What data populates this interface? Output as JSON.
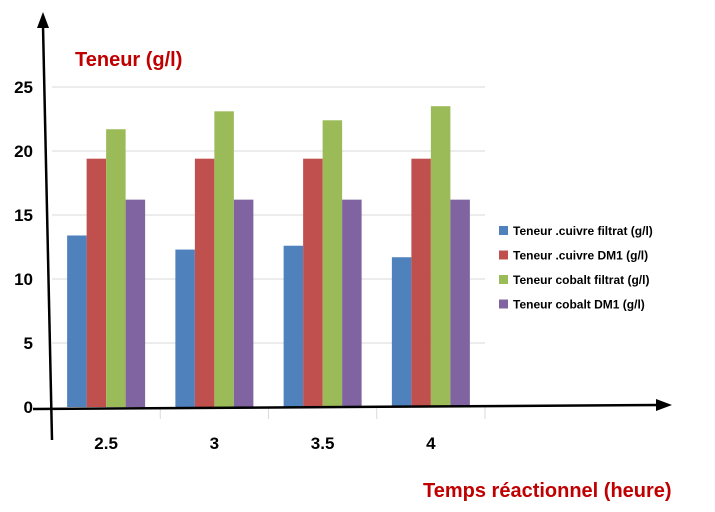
{
  "chart_data": {
    "type": "bar",
    "title": "",
    "ylabel": "Teneur (g/l)",
    "xlabel": "Temps réactionnel  (heure)",
    "categories": [
      "2.5",
      "3",
      "3.5",
      "4"
    ],
    "ylim": [
      0,
      25
    ],
    "yticks": [
      "0",
      "5",
      "10",
      "15",
      "20",
      "25"
    ],
    "grid": true,
    "legend_position": "right",
    "series": [
      {
        "name": "Teneur  .cuivre filtrat (g/l)",
        "color": "#4F81BD",
        "values": [
          13.4,
          12.3,
          12.6,
          11.7
        ]
      },
      {
        "name": "Teneur  .cuivre DM1 (g/l)",
        "color": "#C0504D",
        "values": [
          19.4,
          19.4,
          19.4,
          19.4
        ]
      },
      {
        "name": "Teneur cobalt filtrat (g/l)",
        "color": "#9BBB59",
        "values": [
          21.7,
          23.1,
          22.4,
          23.5
        ]
      },
      {
        "name": "Teneur cobalt DM1 (g/l)",
        "color": "#8064A2",
        "values": [
          16.2,
          16.2,
          16.2,
          16.2
        ]
      }
    ]
  },
  "colors": {
    "axis_title": "#C00000",
    "grid": "#D9D9D9",
    "axis": "#000000"
  }
}
